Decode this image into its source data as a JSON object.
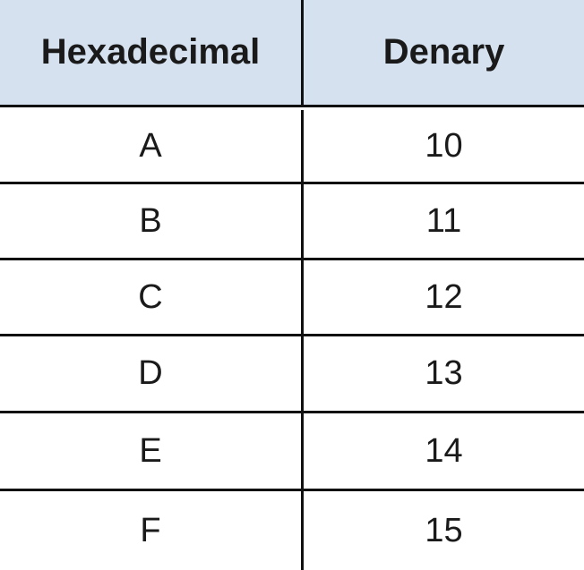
{
  "table": {
    "header_fill": "#d5e1ef",
    "headers": {
      "hexadecimal": "Hexadecimal",
      "denary": "Denary"
    },
    "rows": [
      {
        "hex": "A",
        "denary": "10"
      },
      {
        "hex": "B",
        "denary": "11"
      },
      {
        "hex": "C",
        "denary": "12"
      },
      {
        "hex": "D",
        "denary": "13"
      },
      {
        "hex": "E",
        "denary": "14"
      },
      {
        "hex": "F",
        "denary": "15"
      }
    ]
  }
}
